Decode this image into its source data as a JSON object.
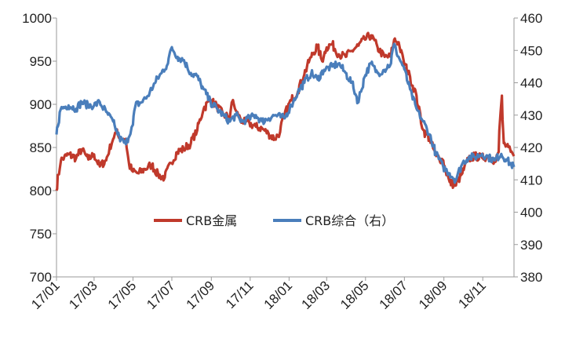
{
  "chart_data": {
    "type": "line",
    "title": "",
    "xlabel": "",
    "ylabel": "",
    "x_tick_labels": [
      "17/01",
      "17/03",
      "17/05",
      "17/07",
      "17/09",
      "17/11",
      "18/01",
      "18/03",
      "18/05",
      "18/07",
      "18/09",
      "18/11"
    ],
    "x_tick_dates": [
      "2017-01-01",
      "2017-03-01",
      "2017-05-01",
      "2017-07-01",
      "2017-09-01",
      "2017-11-01",
      "2018-01-01",
      "2018-03-01",
      "2018-05-01",
      "2018-07-01",
      "2018-09-01",
      "2018-11-01"
    ],
    "xlim": [
      "2017-01-01",
      "2018-12-20"
    ],
    "y_left": {
      "lim": [
        700,
        1000
      ],
      "ticks": [
        700,
        750,
        800,
        850,
        900,
        950,
        1000
      ]
    },
    "y_right": {
      "lim": [
        380,
        460
      ],
      "ticks": [
        380,
        390,
        400,
        410,
        420,
        430,
        440,
        450,
        460
      ]
    },
    "legend_placement": "center",
    "series": [
      {
        "name": "CRB金属",
        "axis": "left",
        "color": "#c0392b",
        "points": [
          [
            "2017-01-01",
            800
          ],
          [
            "2017-01-08",
            835
          ],
          [
            "2017-01-20",
            842
          ],
          [
            "2017-02-01",
            838
          ],
          [
            "2017-02-10",
            848
          ],
          [
            "2017-02-20",
            836
          ],
          [
            "2017-03-01",
            842
          ],
          [
            "2017-03-10",
            828
          ],
          [
            "2017-03-20",
            835
          ],
          [
            "2017-03-31",
            860
          ],
          [
            "2017-04-05",
            868
          ],
          [
            "2017-04-12",
            862
          ],
          [
            "2017-04-20",
            860
          ],
          [
            "2017-04-25",
            830
          ],
          [
            "2017-05-01",
            822
          ],
          [
            "2017-05-10",
            820
          ],
          [
            "2017-05-20",
            825
          ],
          [
            "2017-05-31",
            830
          ],
          [
            "2017-06-10",
            818
          ],
          [
            "2017-06-20",
            815
          ],
          [
            "2017-06-30",
            832
          ],
          [
            "2017-07-10",
            845
          ],
          [
            "2017-07-20",
            848
          ],
          [
            "2017-07-31",
            855
          ],
          [
            "2017-08-10",
            870
          ],
          [
            "2017-08-20",
            895
          ],
          [
            "2017-08-31",
            905
          ],
          [
            "2017-09-10",
            898
          ],
          [
            "2017-09-20",
            888
          ],
          [
            "2017-09-30",
            885
          ],
          [
            "2017-10-05",
            905
          ],
          [
            "2017-10-10",
            892
          ],
          [
            "2017-10-20",
            880
          ],
          [
            "2017-10-31",
            878
          ],
          [
            "2017-11-10",
            874
          ],
          [
            "2017-11-20",
            872
          ],
          [
            "2017-11-30",
            866
          ],
          [
            "2017-12-10",
            860
          ],
          [
            "2017-12-18",
            868
          ],
          [
            "2017-12-25",
            888
          ],
          [
            "2018-01-05",
            905
          ],
          [
            "2018-01-15",
            915
          ],
          [
            "2018-01-25",
            935
          ],
          [
            "2018-02-05",
            955
          ],
          [
            "2018-02-15",
            968
          ],
          [
            "2018-02-22",
            950
          ],
          [
            "2018-03-01",
            966
          ],
          [
            "2018-03-10",
            970
          ],
          [
            "2018-03-20",
            958
          ],
          [
            "2018-03-31",
            955
          ],
          [
            "2018-04-10",
            962
          ],
          [
            "2018-04-20",
            968
          ],
          [
            "2018-04-30",
            975
          ],
          [
            "2018-05-10",
            980
          ],
          [
            "2018-05-20",
            966
          ],
          [
            "2018-05-31",
            955
          ],
          [
            "2018-06-10",
            955
          ],
          [
            "2018-06-15",
            975
          ],
          [
            "2018-06-22",
            972
          ],
          [
            "2018-06-30",
            950
          ],
          [
            "2018-07-10",
            932
          ],
          [
            "2018-07-20",
            910
          ],
          [
            "2018-07-31",
            870
          ],
          [
            "2018-08-10",
            860
          ],
          [
            "2018-08-20",
            840
          ],
          [
            "2018-08-31",
            835
          ],
          [
            "2018-09-10",
            810
          ],
          [
            "2018-09-20",
            806
          ],
          [
            "2018-09-30",
            820
          ],
          [
            "2018-10-10",
            836
          ],
          [
            "2018-10-20",
            840
          ],
          [
            "2018-10-31",
            838
          ],
          [
            "2018-11-10",
            840
          ],
          [
            "2018-11-20",
            835
          ],
          [
            "2018-11-26",
            845
          ],
          [
            "2018-12-01",
            910
          ],
          [
            "2018-12-04",
            855
          ],
          [
            "2018-12-15",
            845
          ],
          [
            "2018-12-20",
            840
          ]
        ]
      },
      {
        "name": "CRB综合（右）",
        "axis": "right",
        "color": "#4a7ebb",
        "points": [
          [
            "2017-01-01",
            424
          ],
          [
            "2017-01-08",
            432
          ],
          [
            "2017-01-20",
            433
          ],
          [
            "2017-02-01",
            432
          ],
          [
            "2017-02-10",
            434
          ],
          [
            "2017-02-20",
            433
          ],
          [
            "2017-03-01",
            433
          ],
          [
            "2017-03-10",
            434
          ],
          [
            "2017-03-20",
            431
          ],
          [
            "2017-03-31",
            428
          ],
          [
            "2017-04-10",
            423
          ],
          [
            "2017-04-20",
            421
          ],
          [
            "2017-05-01",
            427
          ],
          [
            "2017-05-05",
            433
          ],
          [
            "2017-05-15",
            434
          ],
          [
            "2017-05-25",
            436
          ],
          [
            "2017-06-05",
            440
          ],
          [
            "2017-06-15",
            443
          ],
          [
            "2017-06-25",
            446
          ],
          [
            "2017-07-01",
            451
          ],
          [
            "2017-07-10",
            448
          ],
          [
            "2017-07-20",
            447
          ],
          [
            "2017-07-31",
            443
          ],
          [
            "2017-08-10",
            442
          ],
          [
            "2017-08-20",
            438
          ],
          [
            "2017-08-31",
            434
          ],
          [
            "2017-09-10",
            432
          ],
          [
            "2017-09-20",
            430
          ],
          [
            "2017-09-30",
            428
          ],
          [
            "2017-10-10",
            430
          ],
          [
            "2017-10-20",
            428
          ],
          [
            "2017-10-31",
            429
          ],
          [
            "2017-11-10",
            430
          ],
          [
            "2017-11-20",
            428
          ],
          [
            "2017-11-30",
            429
          ],
          [
            "2017-12-10",
            430
          ],
          [
            "2017-12-25",
            429
          ],
          [
            "2018-01-05",
            433
          ],
          [
            "2018-01-15",
            437
          ],
          [
            "2018-01-25",
            440
          ],
          [
            "2018-02-05",
            443
          ],
          [
            "2018-02-15",
            441
          ],
          [
            "2018-02-25",
            444
          ],
          [
            "2018-03-10",
            445
          ],
          [
            "2018-03-20",
            446
          ],
          [
            "2018-03-31",
            443
          ],
          [
            "2018-04-10",
            440
          ],
          [
            "2018-04-20",
            434
          ],
          [
            "2018-04-30",
            442
          ],
          [
            "2018-05-10",
            446
          ],
          [
            "2018-05-20",
            443
          ],
          [
            "2018-05-31",
            444
          ],
          [
            "2018-06-10",
            446
          ],
          [
            "2018-06-15",
            452
          ],
          [
            "2018-06-22",
            448
          ],
          [
            "2018-06-30",
            445
          ],
          [
            "2018-07-10",
            438
          ],
          [
            "2018-07-20",
            432
          ],
          [
            "2018-07-31",
            428
          ],
          [
            "2018-08-10",
            424
          ],
          [
            "2018-08-20",
            418
          ],
          [
            "2018-08-31",
            414
          ],
          [
            "2018-09-10",
            412
          ],
          [
            "2018-09-20",
            410
          ],
          [
            "2018-09-30",
            415
          ],
          [
            "2018-10-10",
            417
          ],
          [
            "2018-10-20",
            417
          ],
          [
            "2018-10-31",
            418
          ],
          [
            "2018-11-10",
            417
          ],
          [
            "2018-11-20",
            416
          ],
          [
            "2018-11-30",
            418
          ],
          [
            "2018-12-10",
            416
          ],
          [
            "2018-12-20",
            414
          ]
        ]
      }
    ]
  }
}
